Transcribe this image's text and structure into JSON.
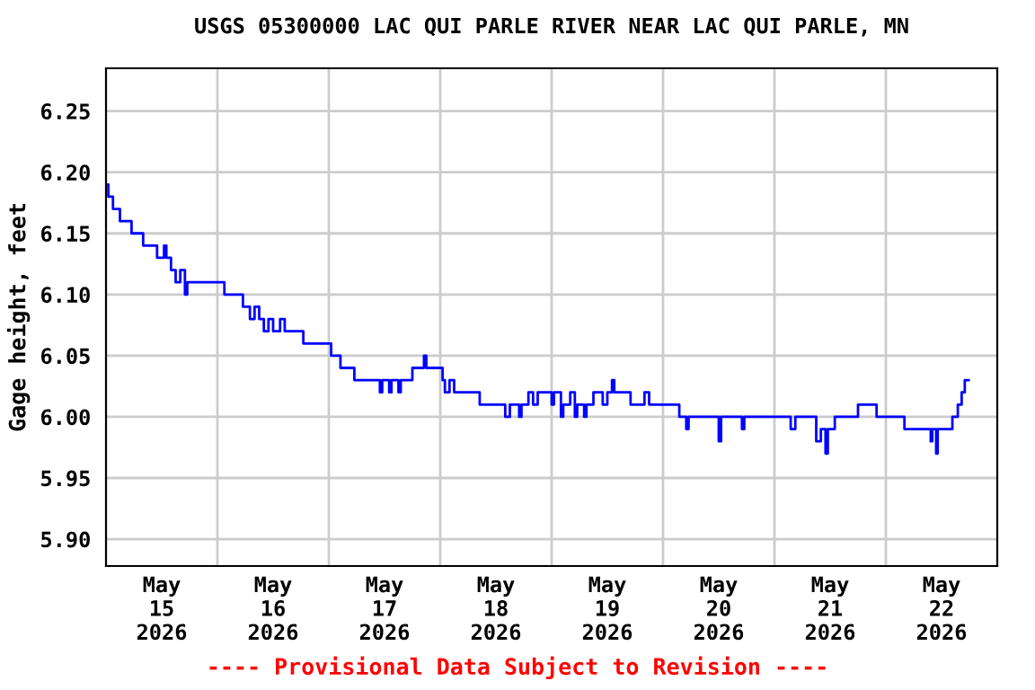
{
  "chart_data": {
    "type": "step",
    "title": "USGS 05300000 LAC QUI PARLE RIVER NEAR LAC QUI PARLE, MN",
    "ylabel": "Gage height, feet",
    "annotations": [
      "---- Provisional Data Subject to Revision ----"
    ],
    "xlim": [
      "2026-05-15T00:00",
      "2026-05-23T00:00"
    ],
    "xticks": [
      {
        "value": "2026-05-15T12:00",
        "label": "May\n15\n2026"
      },
      {
        "value": "2026-05-16T00:00",
        "label": null
      },
      {
        "value": "2026-05-16T12:00",
        "label": "May\n16\n2026"
      },
      {
        "value": "2026-05-17T00:00",
        "label": null
      },
      {
        "value": "2026-05-17T12:00",
        "label": "May\n17\n2026"
      },
      {
        "value": "2026-05-18T00:00",
        "label": null
      },
      {
        "value": "2026-05-18T12:00",
        "label": "May\n18\n2026"
      },
      {
        "value": "2026-05-19T00:00",
        "label": null
      },
      {
        "value": "2026-05-19T12:00",
        "label": "May\n19\n2026"
      },
      {
        "value": "2026-05-20T00:00",
        "label": null
      },
      {
        "value": "2026-05-20T12:00",
        "label": "May\n20\n2026"
      },
      {
        "value": "2026-05-21T00:00",
        "label": null
      },
      {
        "value": "2026-05-21T12:00",
        "label": "May\n21\n2026"
      },
      {
        "value": "2026-05-22T00:00",
        "label": null
      },
      {
        "value": "2026-05-22T12:00",
        "label": "May\n22\n2026"
      }
    ],
    "ylim": [
      5.878,
      6.285
    ],
    "yticks": [
      {
        "value": 5.9,
        "label": "5.90"
      },
      5.95,
      {
        "value": 6.0,
        "label": "6.00"
      },
      6.05,
      {
        "value": 6.1,
        "label": "6.10"
      },
      6.15,
      {
        "value": 6.2,
        "label": "6.20"
      },
      6.25
    ],
    "grid": true,
    "line_style": "solid",
    "marker": "none",
    "series": [
      {
        "color": "#0000ff",
        "x": [
          "2026-05-15T00:00",
          "2026-05-15T00:30",
          "2026-05-15T01:30",
          "2026-05-15T03:00",
          "2026-05-15T05:30",
          "2026-05-15T08:00",
          "2026-05-15T11:00",
          "2026-05-15T12:30",
          "2026-05-15T13:00",
          "2026-05-15T14:00",
          "2026-05-15T15:00",
          "2026-05-15T16:00",
          "2026-05-15T17:00",
          "2026-05-15T17:30",
          "2026-05-16T01:30",
          "2026-05-16T05:30",
          "2026-05-16T07:00",
          "2026-05-16T08:00",
          "2026-05-16T09:00",
          "2026-05-16T10:00",
          "2026-05-16T11:00",
          "2026-05-16T12:00",
          "2026-05-16T13:30",
          "2026-05-16T14:30",
          "2026-05-16T18:30",
          "2026-05-17T00:30",
          "2026-05-17T02:30",
          "2026-05-17T05:30",
          "2026-05-17T11:00",
          "2026-05-17T11:30",
          "2026-05-17T13:00",
          "2026-05-17T13:30",
          "2026-05-17T15:00",
          "2026-05-17T15:30",
          "2026-05-17T18:00",
          "2026-05-17T20:30",
          "2026-05-17T21:00",
          "2026-05-18T00:30",
          "2026-05-18T01:00",
          "2026-05-18T02:00",
          "2026-05-18T03:00",
          "2026-05-18T08:30",
          "2026-05-18T14:00",
          "2026-05-18T15:00",
          "2026-05-18T17:00",
          "2026-05-18T17:30",
          "2026-05-18T19:00",
          "2026-05-18T20:00",
          "2026-05-18T21:00",
          "2026-05-19T00:00",
          "2026-05-19T00:30",
          "2026-05-19T02:00",
          "2026-05-19T02:30",
          "2026-05-19T04:00",
          "2026-05-19T05:00",
          "2026-05-19T05:30",
          "2026-05-19T07:00",
          "2026-05-19T07:30",
          "2026-05-19T09:00",
          "2026-05-19T11:00",
          "2026-05-19T12:00",
          "2026-05-19T13:00",
          "2026-05-19T13:30",
          "2026-05-19T17:00",
          "2026-05-19T20:00",
          "2026-05-19T21:00",
          "2026-05-20T03:30",
          "2026-05-20T05:00",
          "2026-05-20T05:30",
          "2026-05-20T12:00",
          "2026-05-20T12:30",
          "2026-05-20T17:00",
          "2026-05-20T17:30",
          "2026-05-21T03:30",
          "2026-05-21T04:30",
          "2026-05-21T09:00",
          "2026-05-21T10:00",
          "2026-05-21T11:00",
          "2026-05-21T11:30",
          "2026-05-21T13:00",
          "2026-05-21T18:00",
          "2026-05-21T22:00",
          "2026-05-22T04:00",
          "2026-05-22T09:40",
          "2026-05-22T10:00",
          "2026-05-22T10:50",
          "2026-05-22T11:10",
          "2026-05-22T12:25",
          "2026-05-22T14:20",
          "2026-05-22T15:30",
          "2026-05-22T16:20",
          "2026-05-22T17:00",
          "2026-05-22T17:50"
        ],
        "values": [
          6.19,
          6.18,
          6.17,
          6.16,
          6.15,
          6.14,
          6.13,
          6.14,
          6.13,
          6.12,
          6.11,
          6.12,
          6.1,
          6.11,
          6.1,
          6.09,
          6.08,
          6.09,
          6.08,
          6.07,
          6.08,
          6.07,
          6.08,
          6.07,
          6.06,
          6.05,
          6.04,
          6.03,
          6.02,
          6.03,
          6.02,
          6.03,
          6.02,
          6.03,
          6.04,
          6.05,
          6.04,
          6.03,
          6.02,
          6.03,
          6.02,
          6.01,
          6.0,
          6.01,
          6.0,
          6.01,
          6.02,
          6.01,
          6.02,
          6.01,
          6.02,
          6.0,
          6.01,
          6.02,
          6.0,
          6.01,
          6.0,
          6.01,
          6.02,
          6.01,
          6.02,
          6.03,
          6.02,
          6.01,
          6.02,
          6.01,
          6.0,
          5.99,
          6.0,
          5.98,
          6.0,
          5.99,
          6.0,
          5.99,
          6.0,
          5.98,
          5.99,
          5.97,
          5.99,
          6.0,
          6.01,
          6.0,
          5.99,
          5.98,
          5.99,
          5.97,
          5.99,
          5.99,
          6.0,
          6.01,
          6.02,
          6.03,
          6.03
        ]
      }
    ]
  }
}
